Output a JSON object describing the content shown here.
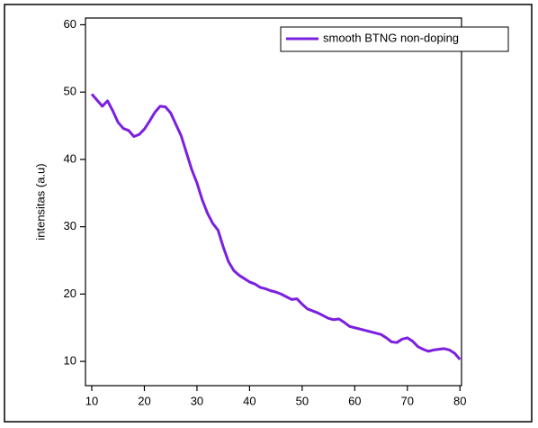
{
  "chart_data": {
    "type": "line",
    "y_label": "intensitas (a.u)",
    "x": [
      10,
      11,
      12,
      13,
      14,
      15,
      16,
      17,
      18,
      19,
      20,
      21,
      22,
      23,
      24,
      25,
      26,
      27,
      28,
      29,
      30,
      31,
      32,
      33,
      34,
      35,
      36,
      37,
      38,
      39,
      40,
      41,
      42,
      43,
      44,
      45,
      46,
      47,
      48,
      49,
      50,
      51,
      52,
      53,
      54,
      55,
      56,
      57,
      58,
      59,
      60,
      61,
      62,
      63,
      64,
      65,
      66,
      67,
      68,
      69,
      70,
      71,
      72,
      73,
      74,
      75,
      76,
      77,
      78,
      79,
      80
    ],
    "series": [
      {
        "name": "smooth BTNG non-doping",
        "color": "#7b1fe0",
        "values": [
          49.7,
          48.8,
          47.9,
          48.7,
          47.2,
          45.5,
          44.6,
          44.3,
          43.4,
          43.7,
          44.5,
          45.7,
          47.0,
          47.9,
          47.8,
          46.9,
          45.2,
          43.5,
          41.0,
          38.5,
          36.5,
          34.0,
          32.0,
          30.5,
          29.5,
          27.0,
          24.8,
          23.5,
          22.8,
          22.3,
          21.8,
          21.5,
          21.0,
          20.8,
          20.5,
          20.3,
          20.0,
          19.6,
          19.2,
          19.3,
          18.5,
          17.8,
          17.5,
          17.2,
          16.8,
          16.4,
          16.2,
          16.3,
          15.8,
          15.2,
          15.0,
          14.8,
          14.6,
          14.4,
          14.2,
          14.0,
          13.5,
          12.9,
          12.8,
          13.3,
          13.5,
          13.0,
          12.2,
          11.8,
          11.5,
          11.7,
          11.8,
          11.9,
          11.7,
          11.2,
          10.3
        ]
      }
    ],
    "xlim": [
      8.8,
      80.3
    ],
    "ylim": [
      6.4,
      61
    ],
    "xticks": [
      10,
      20,
      30,
      40,
      50,
      60,
      70,
      80
    ],
    "yticks": [
      10,
      20,
      30,
      40,
      50,
      60
    ],
    "legend": "upper right"
  }
}
